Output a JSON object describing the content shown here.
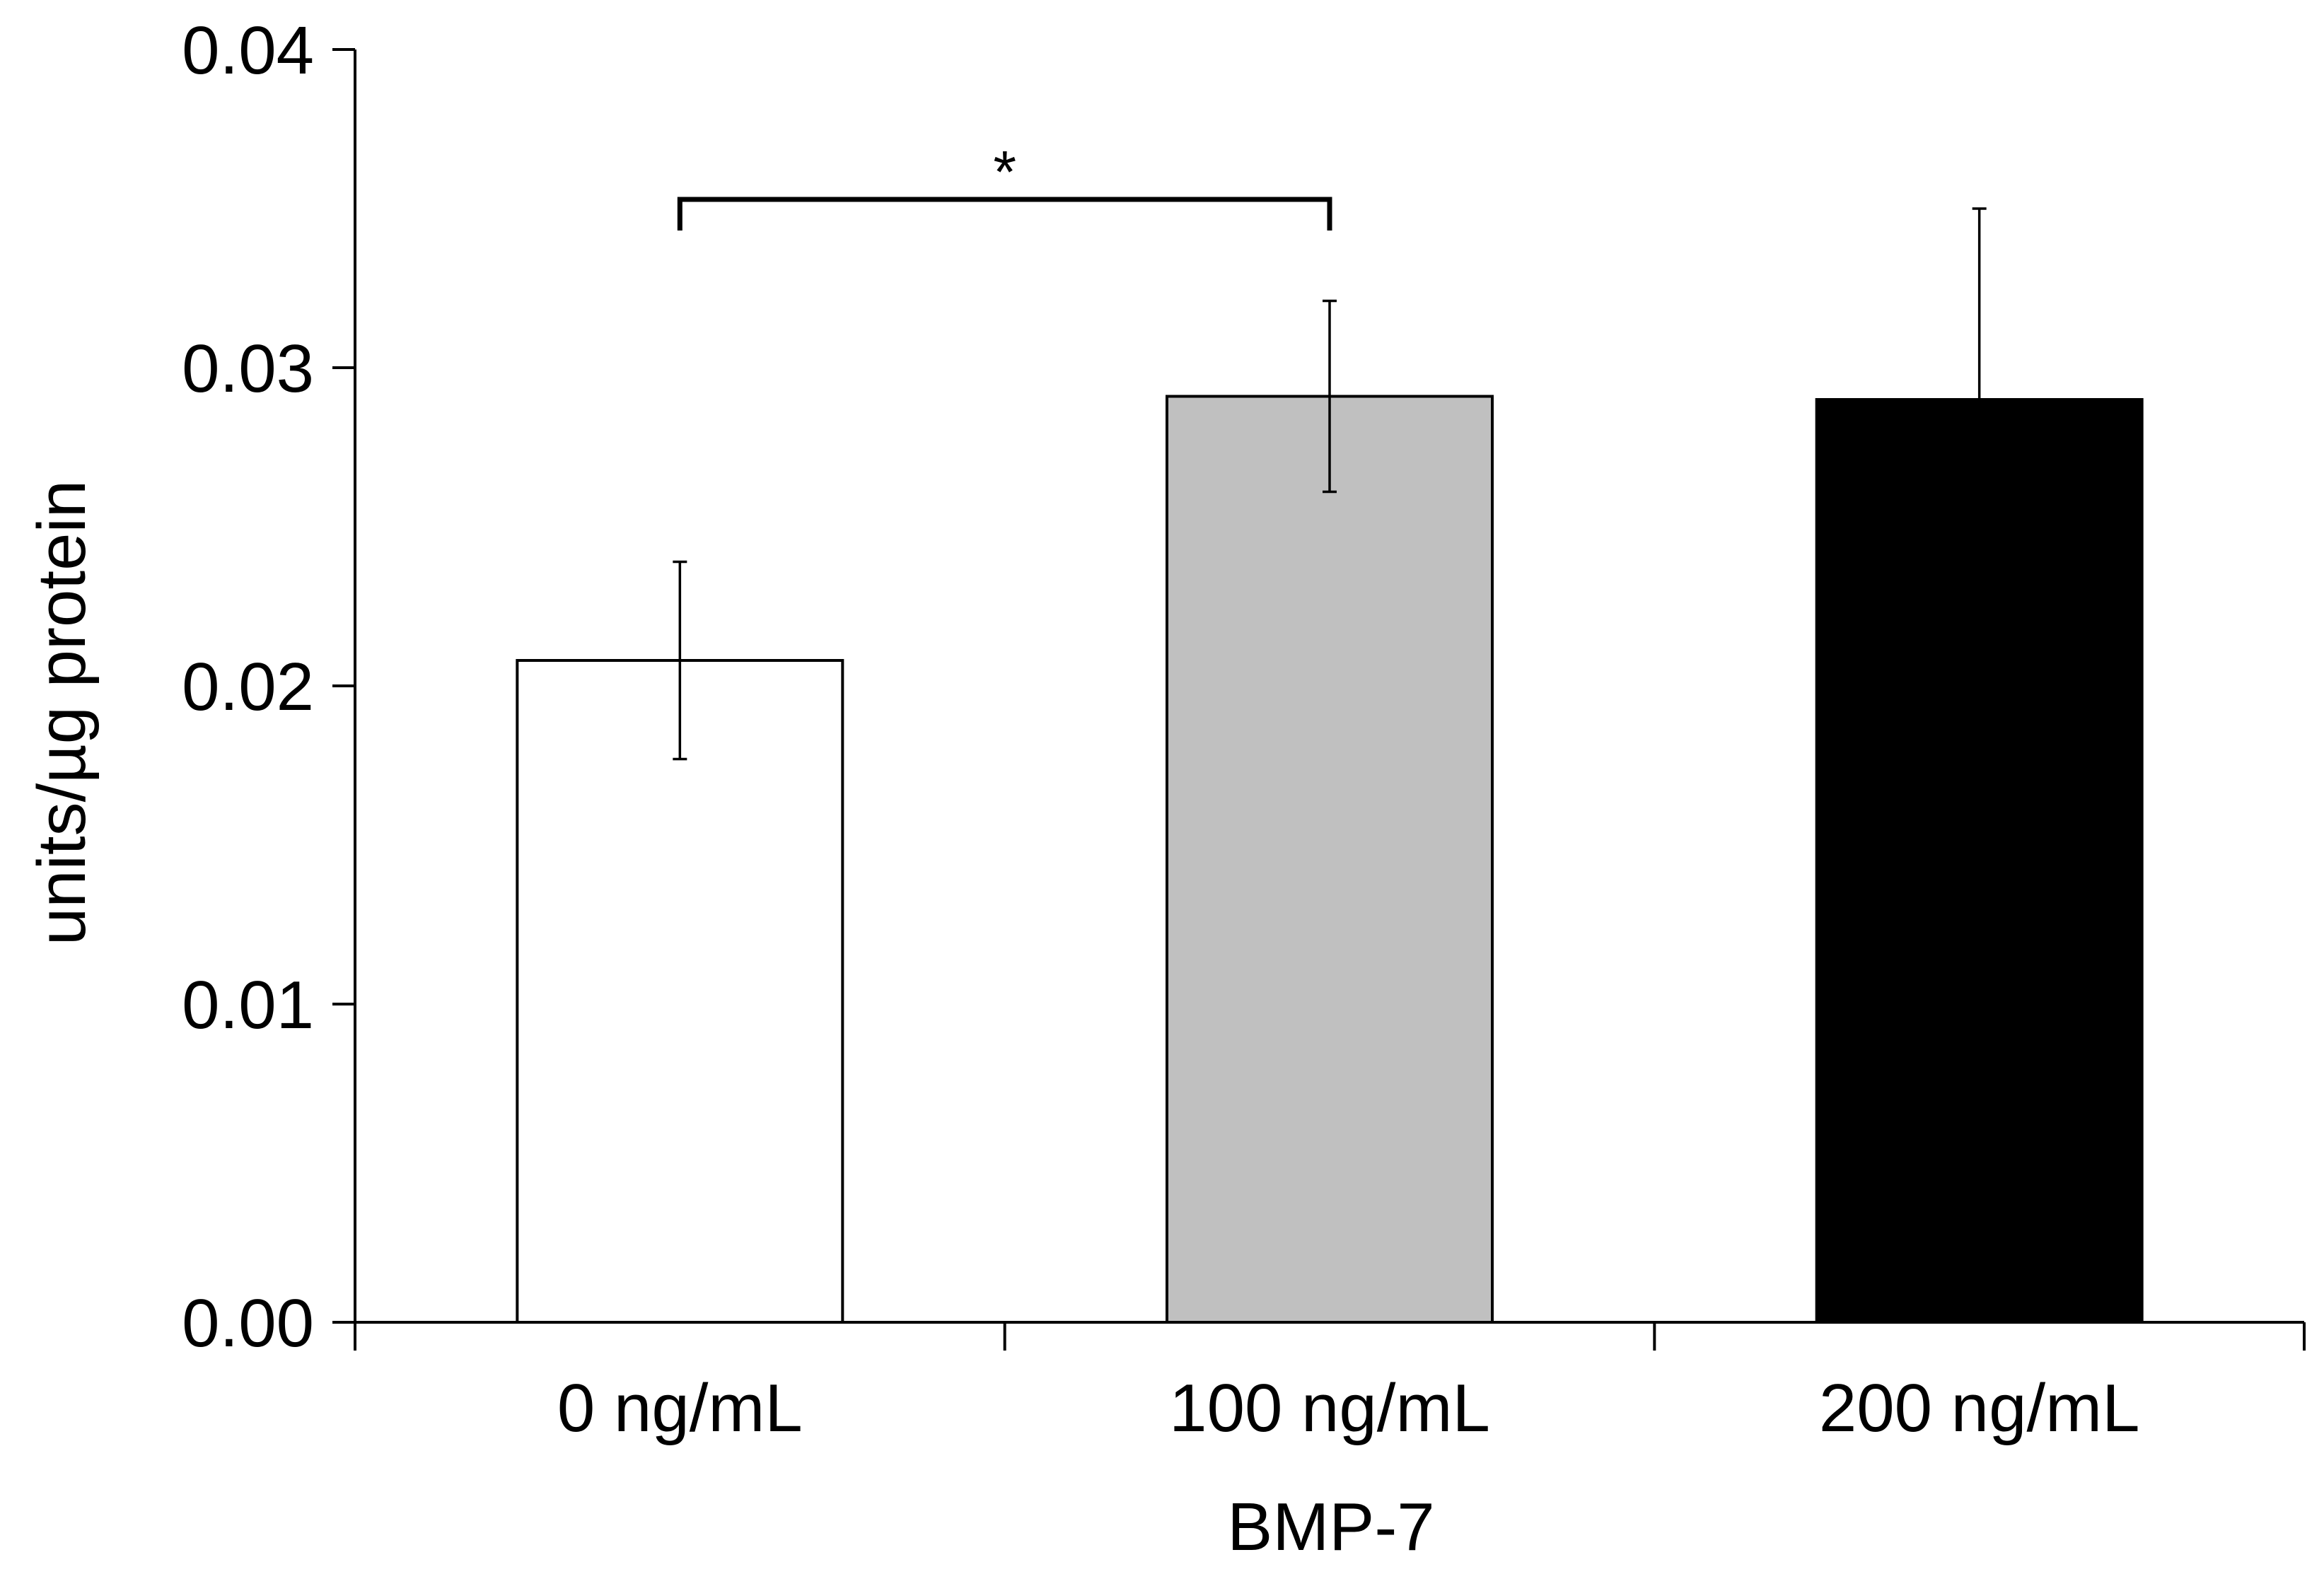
{
  "chart_data": {
    "type": "bar",
    "xlabel": "BMP-7",
    "ylabel": "units/µg protein",
    "ylim": [
      0,
      0.04
    ],
    "yticks": [
      "0.00",
      "0.01",
      "0.02",
      "0.03",
      "0.04"
    ],
    "ytick_values": [
      0,
      0.01,
      0.02,
      0.03,
      0.04
    ],
    "categories": [
      "0 ng/mL",
      "100 ng/mL",
      "200 ng/mL"
    ],
    "values": [
      0.0208,
      0.0291,
      0.029
    ],
    "errors": [
      0.0031,
      0.003,
      0.006
    ],
    "colors": [
      "#ffffff",
      "#c0c0c0",
      "#000000"
    ],
    "significance": {
      "from": 0,
      "to": 1,
      "label": "*"
    },
    "grid": false,
    "legend": "none"
  }
}
